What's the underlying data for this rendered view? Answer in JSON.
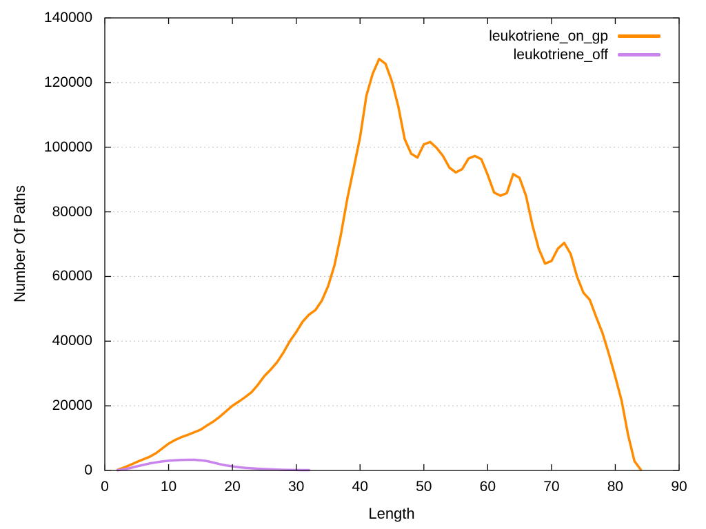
{
  "chart_data": {
    "type": "line",
    "title": "",
    "xlabel": "Length",
    "ylabel": "Number Of Paths",
    "xlim": [
      0,
      90
    ],
    "ylim": [
      0,
      140000
    ],
    "xticks": [
      0,
      10,
      20,
      30,
      40,
      50,
      60,
      70,
      80,
      90
    ],
    "yticks": [
      0,
      20000,
      40000,
      60000,
      80000,
      100000,
      120000,
      140000
    ],
    "grid": "horizontal dotted gridlines at y ticks, mirrored tick marks on all four borders",
    "legend_position": "top-right-inside",
    "background": "#ffffff",
    "axis_color": "#000000",
    "grid_color": "#bbbbbb",
    "series": [
      {
        "name": "leukotriene_on_gp",
        "color": "#ff8c00",
        "x": [
          2,
          3,
          4,
          5,
          6,
          7,
          8,
          9,
          10,
          11,
          12,
          13,
          14,
          15,
          16,
          17,
          18,
          19,
          20,
          21,
          22,
          23,
          24,
          25,
          26,
          27,
          28,
          29,
          30,
          31,
          32,
          33,
          34,
          35,
          36,
          37,
          38,
          39,
          40,
          41,
          42,
          43,
          44,
          45,
          46,
          47,
          48,
          49,
          50,
          51,
          52,
          53,
          54,
          55,
          56,
          57,
          58,
          59,
          60,
          61,
          62,
          63,
          64,
          65,
          66,
          67,
          68,
          69,
          70,
          71,
          72,
          73,
          74,
          75,
          76,
          77,
          78,
          79,
          80,
          81,
          82,
          83,
          84
        ],
        "y": [
          150,
          900,
          1700,
          2600,
          3400,
          4200,
          5300,
          6800,
          8300,
          9400,
          10300,
          11000,
          11800,
          12600,
          13900,
          15100,
          16600,
          18300,
          20000,
          21300,
          22700,
          24200,
          26500,
          29200,
          31200,
          33500,
          36500,
          40000,
          42800,
          46000,
          48200,
          49600,
          52500,
          57000,
          63500,
          73000,
          84000,
          93500,
          103000,
          116000,
          122800,
          127300,
          125800,
          120300,
          112500,
          102500,
          98000,
          96800,
          100900,
          101600,
          99800,
          97300,
          93700,
          92200,
          93200,
          96500,
          97300,
          96300,
          91500,
          86000,
          85000,
          85800,
          91700,
          90500,
          85000,
          76000,
          68600,
          64000,
          64800,
          68600,
          70400,
          67000,
          60000,
          55000,
          52800,
          47500,
          42500,
          36000,
          29000,
          21500,
          11000,
          2900,
          200
        ]
      },
      {
        "name": "leukotriene_off",
        "color": "#c985ec",
        "x": [
          2,
          3,
          4,
          5,
          6,
          7,
          8,
          9,
          10,
          11,
          12,
          13,
          14,
          15,
          16,
          17,
          18,
          19,
          20,
          21,
          22,
          23,
          24,
          25,
          26,
          27,
          28,
          29,
          30,
          31,
          32
        ],
        "y": [
          50,
          350,
          750,
          1250,
          1700,
          2150,
          2500,
          2800,
          3000,
          3150,
          3250,
          3300,
          3300,
          3150,
          2900,
          2450,
          1950,
          1550,
          1280,
          1000,
          820,
          660,
          530,
          430,
          340,
          260,
          200,
          160,
          130,
          110,
          100
        ]
      }
    ]
  }
}
